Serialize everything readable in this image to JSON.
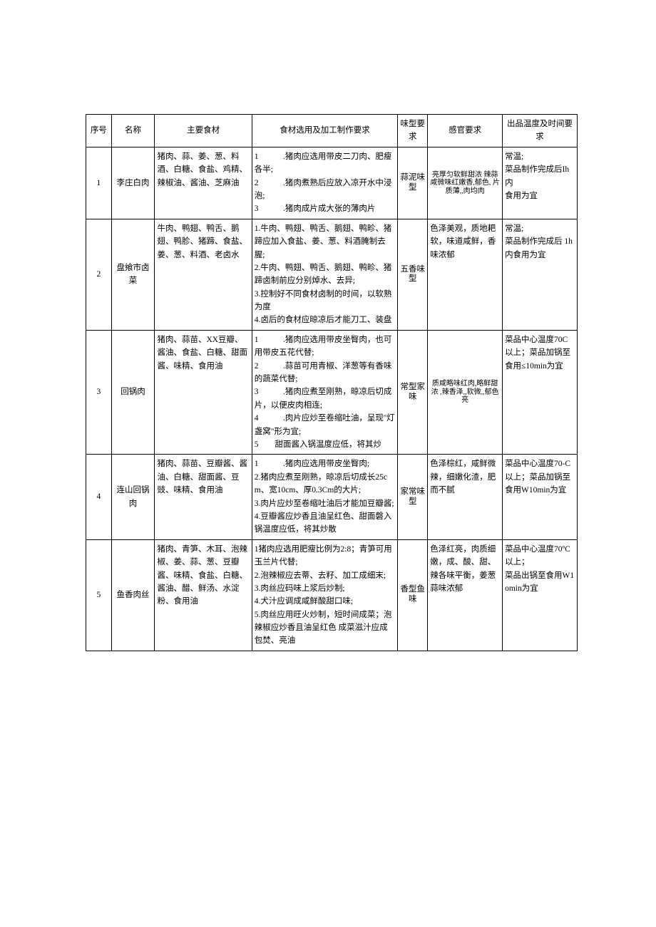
{
  "headers": {
    "idx": "序号",
    "name": "名称",
    "ingredients": "主要食材",
    "requirements": "食材选用及加工制作要求",
    "flavor": "味型要求",
    "sense": "感官要求",
    "temp": "出品温度及时间要求"
  },
  "rows": [
    {
      "idx": "1",
      "name": "李庄白肉",
      "ingredients": "猪肉、蒜、姜、葱、料酒、白糖、食盐、鸡精、辣椒油、酱油、芝麻油",
      "requirements": "1　　　.猪肉应选用带皮二刀肉、肥瘦各半;\n2　　　.猪肉煮熟后应放入凉开水中浸泡;\n3　　　.猪肉成片成大张的薄肉片",
      "flavor": "蒜泥味型",
      "sense": "亮厚匀软鲜甜浓 辣蒜咸微味红嫩香,郁色, 片质薄,,肉均肉",
      "temp": "常温;\n菜品制作完成后Ih内\n食用为宜"
    },
    {
      "idx": "2",
      "name": "盘飨市卤菜",
      "ingredients": "牛肉、鸭翅、鸭舌、鹅翅、鸭胗、猪蹄、食盐、姜、葱、料酒、老卤水",
      "requirements": "1.牛肉、鸭翅、鸭舌、鹅翅、鸭畛、猪蹄应加入食盐、姜、葱、料酒腌制去腥;\n2.牛肉、鸭翅、鸭舌、鹅翅、鸭畛、猪蹄卤制前应分别焯水、去异;\n3.控制好不同食材卤制的时间，以软熟为度\n4.卤后的食材应晾凉后才能刀工、装盘",
      "flavor": "五香味型",
      "sense": "色泽美观，质地耙软，味道咸鲜，香味浓郁",
      "temp": "常温;\n菜品制作完成后 1h\n内食用为宜"
    },
    {
      "idx": "3",
      "name": "回锅肉",
      "ingredients": "猪肉、蒜苗、XX豆瓣、酱油、食盐、白糖、甜面酱、味精、食用油",
      "requirements": "1　　　.猪肉应选用带皮坐臀肉，也可用带皮五花代替;\n2　　　.蒜苗可用青椒、洋葱等有香味的蔬菜代替;\n3　　　.猪肉应煮至刚熟，晾凉后切成片，以便皮肉相连;\n4　　　.肉片应炒至卷缩吐油，呈现''灯盏窝\"形为宜;\n5　　甜面酱入锅温度应低，将其炒",
      "flavor": "常型家味",
      "sense": "质咸略味红肉,略鲜甜浓 ,辣香泽,,软微,,郁色亮",
      "temp": "菜品中心温度70C以上；菜品加锅至食用≤10min为宜"
    },
    {
      "idx": "4",
      "name": "连山回锅肉",
      "ingredients": "猪肉、蒜苗、豆瓣酱、酱油、白糖、甜面酱、豆豉、味精、食用油",
      "requirements": "1　　　.猪肉应选用带皮坐臀肉;\n2.猪肉应煮至刚熟，晾凉后切成长25cm、宽10cm、厚0.3Cm的大片;\n3.肉片应炒至卷缩吐油后才能加豆瓣酱;\n4.豆瓣酱应炒香且油呈红色、甜面磐入锅温度应低，将其炒散",
      "flavor": "家常味型",
      "sense": "色泽棕红，咸鲜微辣，细嫩化渣，肥而不腻",
      "temp": "菜品中心温度70-C以上；菜品加锅至食用W10min为宜"
    },
    {
      "idx": "5",
      "name": "鱼香肉丝",
      "ingredients": "猪肉、青笋、木耳、泡辣椒、姜、蒜、葱、豆瓣酱、味精、食盐、白糖、酱油、醋、鲜汤、水淀粉、食用油",
      "requirements": "1猪肉应选用肥瘦比例为2:8；青笋可用玉兰片代替;\n2.泡辣椒应去蒂、去籽、加工成细末;\n3.肉丝应码味上浆后炒制;\n4.犬汁应调成咸鲜酸甜口味;\n5.肉丝应用旺火炒制，短时间成菜；泡辣椒应炒香且油呈红色 成菜滋汁应成包焚、亮油",
      "flavor": "香型鱼味",
      "sense": "色泽红亮，肉质细嫩，成、酸、甜、辣各味平衡，姜葱蒜味浓郁",
      "temp": "菜品中心温度70ºC以上；\n菜品出锅至食用W1omin为宜"
    }
  ]
}
